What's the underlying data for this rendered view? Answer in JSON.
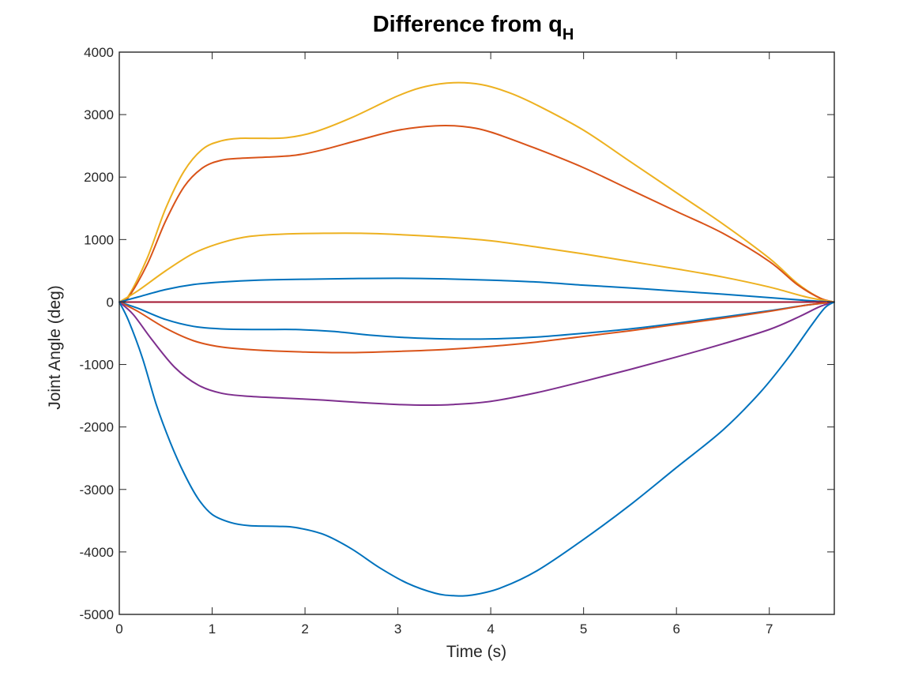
{
  "chart_data": {
    "type": "line",
    "title": "Difference from q",
    "title_subscript": "H",
    "xlabel": "Time (s)",
    "ylabel": "Joint Angle (deg)",
    "xlim": [
      0,
      7.7
    ],
    "ylim": [
      -5000,
      4000
    ],
    "x_ticks": [
      0,
      1,
      2,
      3,
      4,
      5,
      6,
      7
    ],
    "y_ticks": [
      4000,
      3000,
      2000,
      1000,
      0,
      -1000,
      -2000,
      -3000,
      -4000,
      -5000
    ],
    "grid": false,
    "legend": "none",
    "series": [
      {
        "color": "#EDB120",
        "points": [
          [
            0,
            0
          ],
          [
            0.1,
            100
          ],
          [
            0.3,
            700
          ],
          [
            0.5,
            1500
          ],
          [
            0.7,
            2100
          ],
          [
            0.9,
            2450
          ],
          [
            1.1,
            2580
          ],
          [
            1.3,
            2620
          ],
          [
            1.5,
            2620
          ],
          [
            1.8,
            2630
          ],
          [
            2.1,
            2720
          ],
          [
            2.5,
            2950
          ],
          [
            3.0,
            3300
          ],
          [
            3.3,
            3450
          ],
          [
            3.6,
            3510
          ],
          [
            3.9,
            3480
          ],
          [
            4.2,
            3350
          ],
          [
            4.5,
            3150
          ],
          [
            5.0,
            2750
          ],
          [
            5.5,
            2250
          ],
          [
            6.0,
            1750
          ],
          [
            6.5,
            1250
          ],
          [
            7.0,
            700
          ],
          [
            7.3,
            300
          ],
          [
            7.55,
            60
          ],
          [
            7.7,
            0
          ]
        ]
      },
      {
        "color": "#D95319",
        "points": [
          [
            0,
            0
          ],
          [
            0.1,
            80
          ],
          [
            0.3,
            600
          ],
          [
            0.5,
            1300
          ],
          [
            0.7,
            1850
          ],
          [
            0.9,
            2150
          ],
          [
            1.1,
            2270
          ],
          [
            1.3,
            2300
          ],
          [
            1.6,
            2320
          ],
          [
            1.9,
            2350
          ],
          [
            2.2,
            2440
          ],
          [
            2.6,
            2600
          ],
          [
            3.0,
            2750
          ],
          [
            3.4,
            2820
          ],
          [
            3.7,
            2810
          ],
          [
            4.0,
            2720
          ],
          [
            4.5,
            2450
          ],
          [
            5.0,
            2150
          ],
          [
            5.5,
            1800
          ],
          [
            6.0,
            1450
          ],
          [
            6.5,
            1100
          ],
          [
            7.0,
            650
          ],
          [
            7.3,
            280
          ],
          [
            7.55,
            60
          ],
          [
            7.7,
            0
          ]
        ]
      },
      {
        "color": "#EDB120",
        "points": [
          [
            0,
            0
          ],
          [
            0.2,
            180
          ],
          [
            0.5,
            500
          ],
          [
            0.8,
            780
          ],
          [
            1.1,
            950
          ],
          [
            1.4,
            1050
          ],
          [
            1.8,
            1090
          ],
          [
            2.2,
            1100
          ],
          [
            2.6,
            1100
          ],
          [
            3.0,
            1080
          ],
          [
            3.5,
            1040
          ],
          [
            4.0,
            980
          ],
          [
            4.5,
            880
          ],
          [
            5.0,
            770
          ],
          [
            5.5,
            650
          ],
          [
            6.0,
            530
          ],
          [
            6.5,
            400
          ],
          [
            7.0,
            240
          ],
          [
            7.4,
            80
          ],
          [
            7.7,
            0
          ]
        ]
      },
      {
        "color": "#0072BD",
        "points": [
          [
            0,
            0
          ],
          [
            0.2,
            80
          ],
          [
            0.5,
            200
          ],
          [
            0.8,
            280
          ],
          [
            1.1,
            320
          ],
          [
            1.5,
            350
          ],
          [
            2.0,
            365
          ],
          [
            2.5,
            375
          ],
          [
            3.0,
            380
          ],
          [
            3.5,
            370
          ],
          [
            4.0,
            350
          ],
          [
            4.5,
            320
          ],
          [
            5.0,
            270
          ],
          [
            5.5,
            225
          ],
          [
            6.0,
            175
          ],
          [
            6.5,
            125
          ],
          [
            7.0,
            70
          ],
          [
            7.4,
            25
          ],
          [
            7.7,
            0
          ]
        ]
      },
      {
        "color": "#A2142F",
        "points": [
          [
            0,
            0
          ],
          [
            7.7,
            0
          ]
        ]
      },
      {
        "color": "#0072BD",
        "points": [
          [
            0,
            0
          ],
          [
            0.2,
            -100
          ],
          [
            0.5,
            -280
          ],
          [
            0.8,
            -390
          ],
          [
            1.1,
            -430
          ],
          [
            1.5,
            -440
          ],
          [
            1.9,
            -440
          ],
          [
            2.3,
            -470
          ],
          [
            2.7,
            -530
          ],
          [
            3.1,
            -570
          ],
          [
            3.5,
            -590
          ],
          [
            4.0,
            -590
          ],
          [
            4.5,
            -560
          ],
          [
            5.0,
            -500
          ],
          [
            5.5,
            -430
          ],
          [
            6.0,
            -340
          ],
          [
            6.5,
            -240
          ],
          [
            7.0,
            -140
          ],
          [
            7.4,
            -50
          ],
          [
            7.7,
            0
          ]
        ]
      },
      {
        "color": "#D95319",
        "points": [
          [
            0,
            0
          ],
          [
            0.2,
            -150
          ],
          [
            0.5,
            -420
          ],
          [
            0.8,
            -620
          ],
          [
            1.1,
            -720
          ],
          [
            1.5,
            -770
          ],
          [
            2.0,
            -800
          ],
          [
            2.5,
            -810
          ],
          [
            3.0,
            -790
          ],
          [
            3.5,
            -760
          ],
          [
            4.0,
            -710
          ],
          [
            4.5,
            -640
          ],
          [
            5.0,
            -550
          ],
          [
            5.5,
            -460
          ],
          [
            6.0,
            -360
          ],
          [
            6.5,
            -260
          ],
          [
            7.0,
            -150
          ],
          [
            7.4,
            -50
          ],
          [
            7.7,
            0
          ]
        ]
      },
      {
        "color": "#7E2F8E",
        "points": [
          [
            0,
            0
          ],
          [
            0.15,
            -200
          ],
          [
            0.35,
            -600
          ],
          [
            0.6,
            -1050
          ],
          [
            0.85,
            -1330
          ],
          [
            1.1,
            -1460
          ],
          [
            1.4,
            -1510
          ],
          [
            1.8,
            -1540
          ],
          [
            2.2,
            -1570
          ],
          [
            2.6,
            -1610
          ],
          [
            3.0,
            -1640
          ],
          [
            3.3,
            -1650
          ],
          [
            3.6,
            -1640
          ],
          [
            4.0,
            -1590
          ],
          [
            4.5,
            -1450
          ],
          [
            5.0,
            -1270
          ],
          [
            5.5,
            -1080
          ],
          [
            6.0,
            -880
          ],
          [
            6.5,
            -670
          ],
          [
            7.0,
            -440
          ],
          [
            7.3,
            -250
          ],
          [
            7.55,
            -70
          ],
          [
            7.7,
            0
          ]
        ]
      },
      {
        "color": "#0072BD",
        "points": [
          [
            0,
            0
          ],
          [
            0.1,
            -300
          ],
          [
            0.25,
            -900
          ],
          [
            0.4,
            -1650
          ],
          [
            0.55,
            -2250
          ],
          [
            0.7,
            -2750
          ],
          [
            0.85,
            -3150
          ],
          [
            1.0,
            -3400
          ],
          [
            1.2,
            -3530
          ],
          [
            1.4,
            -3580
          ],
          [
            1.7,
            -3590
          ],
          [
            1.9,
            -3610
          ],
          [
            2.2,
            -3720
          ],
          [
            2.5,
            -3950
          ],
          [
            2.8,
            -4250
          ],
          [
            3.1,
            -4500
          ],
          [
            3.4,
            -4660
          ],
          [
            3.6,
            -4700
          ],
          [
            3.8,
            -4690
          ],
          [
            4.1,
            -4580
          ],
          [
            4.5,
            -4300
          ],
          [
            5.0,
            -3800
          ],
          [
            5.5,
            -3250
          ],
          [
            6.0,
            -2650
          ],
          [
            6.5,
            -2050
          ],
          [
            6.9,
            -1450
          ],
          [
            7.2,
            -900
          ],
          [
            7.45,
            -380
          ],
          [
            7.6,
            -90
          ],
          [
            7.7,
            0
          ]
        ]
      }
    ]
  }
}
